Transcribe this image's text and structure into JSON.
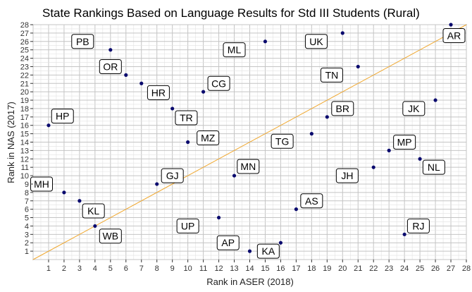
{
  "chart_data": {
    "type": "scatter",
    "title": "State Rankings Based on Language Results for Std III Students (Rural)",
    "xlabel": "Rank in ASER (2018)",
    "ylabel": "Rank in NAS (2017)",
    "xlim": [
      0,
      28
    ],
    "ylim": [
      0,
      28
    ],
    "x_ticks": [
      1,
      2,
      3,
      4,
      5,
      6,
      7,
      8,
      9,
      10,
      11,
      12,
      13,
      14,
      15,
      16,
      17,
      18,
      19,
      20,
      21,
      22,
      23,
      24,
      25,
      26,
      27,
      28
    ],
    "y_ticks": [
      1,
      2,
      3,
      4,
      5,
      6,
      7,
      8,
      9,
      10,
      11,
      12,
      13,
      14,
      15,
      16,
      17,
      18,
      19,
      20,
      21,
      22,
      23,
      24,
      25,
      26,
      27,
      28
    ],
    "grid": true,
    "reference_line": {
      "type": "y=x",
      "color": "#f0a830"
    },
    "point_color": "#0a0a6e",
    "points": [
      {
        "label": "HP",
        "x": 1,
        "y": 16,
        "lx": 1.9,
        "ly": 17.1
      },
      {
        "label": "MH",
        "x": 2,
        "y": 8,
        "lx": 0.0,
        "ly": 9.0
      },
      {
        "label": "KL",
        "x": 3,
        "y": 7,
        "lx": 3.9,
        "ly": 5.8
      },
      {
        "label": "WB",
        "x": 4,
        "y": 4,
        "lx": 5.0,
        "ly": 2.8
      },
      {
        "label": "PB",
        "x": 5,
        "y": 25,
        "lx": 3.2,
        "ly": 26.0
      },
      {
        "label": "OR",
        "x": 6,
        "y": 22,
        "lx": 5.0,
        "ly": 23.0
      },
      {
        "label": "HR",
        "x": 7,
        "y": 21,
        "lx": 8.1,
        "ly": 19.9
      },
      {
        "label": "GJ",
        "x": 8,
        "y": 9,
        "lx": 9.0,
        "ly": 10.0
      },
      {
        "label": "TR",
        "x": 9,
        "y": 18,
        "lx": 9.9,
        "ly": 16.9
      },
      {
        "label": "MZ",
        "x": 10,
        "y": 14,
        "lx": 11.3,
        "ly": 14.5
      },
      {
        "label": "CG",
        "x": 11,
        "y": 20,
        "lx": 12.0,
        "ly": 21.0
      },
      {
        "label": "UP",
        "x": 12,
        "y": 5,
        "lx": 10.0,
        "ly": 4.0
      },
      {
        "label": "MN",
        "x": 13,
        "y": 10,
        "lx": 13.9,
        "ly": 11.1
      },
      {
        "label": "AP",
        "x": 14,
        "y": 1,
        "lx": 12.6,
        "ly": 2.0
      },
      {
        "label": "ML",
        "x": 15,
        "y": 26,
        "lx": 13.0,
        "ly": 25.0
      },
      {
        "label": "KA",
        "x": 16,
        "y": 2,
        "lx": 15.2,
        "ly": 1.0
      },
      {
        "label": "AS",
        "x": 17,
        "y": 6,
        "lx": 18.0,
        "ly": 7.0
      },
      {
        "label": "TG",
        "x": 18,
        "y": 15,
        "lx": 16.1,
        "ly": 14.1
      },
      {
        "label": "BR",
        "x": 19,
        "y": 17,
        "lx": 20.0,
        "ly": 18.0
      },
      {
        "label": "UK",
        "x": 20,
        "y": 27,
        "lx": 18.3,
        "ly": 26.0
      },
      {
        "label": "TN",
        "x": 21,
        "y": 23,
        "lx": 19.3,
        "ly": 22.0
      },
      {
        "label": "JH",
        "x": 22,
        "y": 11,
        "lx": 20.3,
        "ly": 10.0
      },
      {
        "label": "MP",
        "x": 23,
        "y": 13,
        "lx": 24.0,
        "ly": 14.0
      },
      {
        "label": "RJ",
        "x": 24,
        "y": 3,
        "lx": 24.9,
        "ly": 4.0
      },
      {
        "label": "NL",
        "x": 25,
        "y": 12,
        "lx": 25.9,
        "ly": 11.0
      },
      {
        "label": "JK",
        "x": 26,
        "y": 19,
        "lx": 24.6,
        "ly": 18.0
      },
      {
        "label": "AR",
        "x": 27,
        "y": 28,
        "lx": 27.4,
        "ly": 26.7
      }
    ]
  }
}
